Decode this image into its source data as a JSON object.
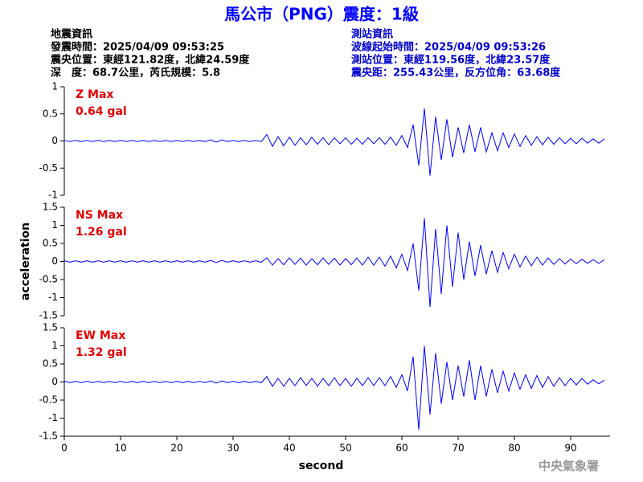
{
  "header": {
    "title": "馬公市（PNG）震度：1級",
    "left": [
      "地震資訊",
      "發震時間：2025/04/09 09:53:25",
      "震央位置：東經121.82度，北緯24.59度",
      "深　度：68.7公里，芮氏規模：5.8"
    ],
    "right": [
      "測站資訊",
      "波線起始時間：2025/04/09 09:53:26",
      "測站位置：東經119.56度，北緯23.57度",
      "震央距：255.43公里，反方位角：63.68度"
    ],
    "footer": "中央氣象署"
  },
  "chart_data": [
    {
      "type": "line",
      "annotations": [
        "Z Max",
        "0.64 gal"
      ],
      "annotation_color": "#e00000",
      "color": "#0000ff",
      "x": [
        0,
        1,
        2,
        3,
        4,
        5,
        6,
        7,
        8,
        9,
        10,
        11,
        12,
        13,
        14,
        15,
        16,
        17,
        18,
        19,
        20,
        21,
        22,
        23,
        24,
        25,
        26,
        27,
        28,
        29,
        30,
        31,
        32,
        33,
        34,
        35,
        36,
        37,
        38,
        39,
        40,
        41,
        42,
        43,
        44,
        45,
        46,
        47,
        48,
        49,
        50,
        51,
        52,
        53,
        54,
        55,
        56,
        57,
        58,
        59,
        60,
        61,
        62,
        63,
        64,
        65,
        66,
        67,
        68,
        69,
        70,
        71,
        72,
        73,
        74,
        75,
        76,
        77,
        78,
        79,
        80,
        81,
        82,
        83,
        84,
        85,
        86,
        87,
        88,
        89,
        90,
        91,
        92,
        93,
        94,
        95,
        96
      ],
      "values": [
        0.01,
        -0.01,
        0.01,
        -0.01,
        0.01,
        -0.01,
        0.01,
        -0.01,
        0.01,
        -0.01,
        0.01,
        -0.01,
        0.01,
        -0.01,
        0.01,
        -0.01,
        0.01,
        -0.01,
        0.01,
        -0.01,
        0.01,
        -0.01,
        0.01,
        -0.01,
        0.01,
        -0.01,
        0.02,
        -0.02,
        0.02,
        -0.01,
        0.01,
        -0.01,
        0.01,
        -0.01,
        0.01,
        -0.01,
        0.12,
        -0.1,
        0.08,
        -0.09,
        0.07,
        -0.08,
        0.06,
        -0.07,
        0.07,
        -0.06,
        0.06,
        -0.07,
        0.06,
        -0.05,
        0.06,
        -0.06,
        0.05,
        -0.06,
        0.06,
        -0.05,
        0.06,
        -0.06,
        0.07,
        -0.08,
        0.1,
        -0.12,
        0.3,
        -0.45,
        0.6,
        -0.64,
        0.45,
        -0.35,
        0.4,
        -0.3,
        0.25,
        -0.22,
        0.3,
        -0.2,
        0.25,
        -0.2,
        0.15,
        -0.18,
        0.15,
        -0.12,
        0.13,
        -0.1,
        0.1,
        -0.08,
        0.08,
        -0.07,
        0.07,
        -0.06,
        0.06,
        -0.05,
        0.05,
        -0.05,
        0.05,
        -0.04,
        0.04,
        -0.04,
        0.04
      ],
      "xlim": [
        0,
        97
      ],
      "ylim": [
        -1,
        1
      ],
      "yticks": [
        -1,
        -0.5,
        0,
        0.5,
        1
      ]
    },
    {
      "type": "line",
      "annotations": [
        "NS Max",
        "1.26 gal"
      ],
      "annotation_color": "#e00000",
      "color": "#0000ff",
      "ylabel": "acceleration",
      "x": [
        0,
        1,
        2,
        3,
        4,
        5,
        6,
        7,
        8,
        9,
        10,
        11,
        12,
        13,
        14,
        15,
        16,
        17,
        18,
        19,
        20,
        21,
        22,
        23,
        24,
        25,
        26,
        27,
        28,
        29,
        30,
        31,
        32,
        33,
        34,
        35,
        36,
        37,
        38,
        39,
        40,
        41,
        42,
        43,
        44,
        45,
        46,
        47,
        48,
        49,
        50,
        51,
        52,
        53,
        54,
        55,
        56,
        57,
        58,
        59,
        60,
        61,
        62,
        63,
        64,
        65,
        66,
        67,
        68,
        69,
        70,
        71,
        72,
        73,
        74,
        75,
        76,
        77,
        78,
        79,
        80,
        81,
        82,
        83,
        84,
        85,
        86,
        87,
        88,
        89,
        90,
        91,
        92,
        93,
        94,
        95,
        96
      ],
      "values": [
        0.02,
        -0.02,
        0.02,
        -0.02,
        0.02,
        -0.02,
        0.02,
        -0.02,
        0.02,
        -0.02,
        0.02,
        -0.02,
        0.02,
        -0.02,
        0.02,
        -0.02,
        0.02,
        -0.02,
        0.02,
        -0.02,
        0.02,
        -0.02,
        0.02,
        -0.02,
        0.02,
        -0.02,
        0.03,
        -0.03,
        0.03,
        -0.02,
        0.02,
        -0.02,
        0.02,
        -0.02,
        0.02,
        -0.02,
        0.1,
        -0.1,
        0.08,
        -0.09,
        0.1,
        -0.08,
        0.09,
        -0.1,
        0.08,
        -0.09,
        0.1,
        -0.08,
        0.09,
        -0.1,
        0.08,
        -0.09,
        0.1,
        -0.1,
        0.12,
        -0.1,
        0.12,
        -0.13,
        0.15,
        -0.18,
        0.2,
        -0.25,
        0.5,
        -0.8,
        1.2,
        -1.26,
        0.9,
        -0.9,
        1.0,
        -0.7,
        0.8,
        -0.5,
        0.55,
        -0.4,
        0.45,
        -0.35,
        0.3,
        -0.3,
        0.25,
        -0.2,
        0.2,
        -0.15,
        0.15,
        -0.12,
        0.12,
        -0.1,
        0.1,
        -0.08,
        0.08,
        -0.07,
        0.07,
        -0.06,
        0.06,
        -0.05,
        0.05,
        -0.05,
        0.05
      ],
      "xlim": [
        0,
        97
      ],
      "ylim": [
        -1.5,
        1.5
      ],
      "yticks": [
        -1.5,
        -1,
        -0.5,
        0,
        0.5,
        1,
        1.5
      ]
    },
    {
      "type": "line",
      "annotations": [
        "EW Max",
        "1.32 gal"
      ],
      "annotation_color": "#e00000",
      "color": "#0000ff",
      "xlabel": "second",
      "x": [
        0,
        1,
        2,
        3,
        4,
        5,
        6,
        7,
        8,
        9,
        10,
        11,
        12,
        13,
        14,
        15,
        16,
        17,
        18,
        19,
        20,
        21,
        22,
        23,
        24,
        25,
        26,
        27,
        28,
        29,
        30,
        31,
        32,
        33,
        34,
        35,
        36,
        37,
        38,
        39,
        40,
        41,
        42,
        43,
        44,
        45,
        46,
        47,
        48,
        49,
        50,
        51,
        52,
        53,
        54,
        55,
        56,
        57,
        58,
        59,
        60,
        61,
        62,
        63,
        64,
        65,
        66,
        67,
        68,
        69,
        70,
        71,
        72,
        73,
        74,
        75,
        76,
        77,
        78,
        79,
        80,
        81,
        82,
        83,
        84,
        85,
        86,
        87,
        88,
        89,
        90,
        91,
        92,
        93,
        94,
        95,
        96
      ],
      "values": [
        0.02,
        -0.02,
        0.02,
        -0.02,
        0.02,
        -0.02,
        0.02,
        -0.02,
        0.02,
        -0.02,
        0.02,
        -0.02,
        0.02,
        -0.02,
        0.02,
        -0.02,
        0.02,
        -0.02,
        0.02,
        -0.02,
        0.02,
        -0.02,
        0.02,
        -0.02,
        0.02,
        -0.02,
        0.03,
        -0.03,
        0.03,
        -0.02,
        0.02,
        -0.02,
        0.02,
        -0.02,
        0.02,
        -0.02,
        0.15,
        -0.12,
        0.1,
        -0.12,
        0.1,
        -0.1,
        0.12,
        -0.1,
        0.1,
        -0.12,
        0.1,
        -0.1,
        0.12,
        -0.1,
        0.1,
        -0.12,
        0.1,
        -0.1,
        0.12,
        -0.1,
        0.12,
        -0.1,
        0.15,
        -0.15,
        0.2,
        -0.25,
        0.7,
        -1.32,
        1.0,
        -0.9,
        0.8,
        -0.6,
        0.55,
        -0.5,
        0.45,
        -0.4,
        0.6,
        -0.5,
        0.45,
        -0.4,
        0.35,
        -0.3,
        0.3,
        -0.25,
        0.25,
        -0.2,
        0.2,
        -0.18,
        0.18,
        -0.15,
        0.15,
        -0.12,
        0.12,
        -0.1,
        0.1,
        -0.08,
        0.1,
        -0.06,
        0.06,
        -0.05,
        0.05
      ],
      "xlim": [
        0,
        97
      ],
      "ylim": [
        -1.5,
        1.5
      ],
      "yticks": [
        -1.5,
        -1,
        -0.5,
        0,
        0.5,
        1,
        1.5
      ],
      "xticks": [
        0,
        10,
        20,
        30,
        40,
        50,
        60,
        70,
        80,
        90
      ]
    }
  ]
}
